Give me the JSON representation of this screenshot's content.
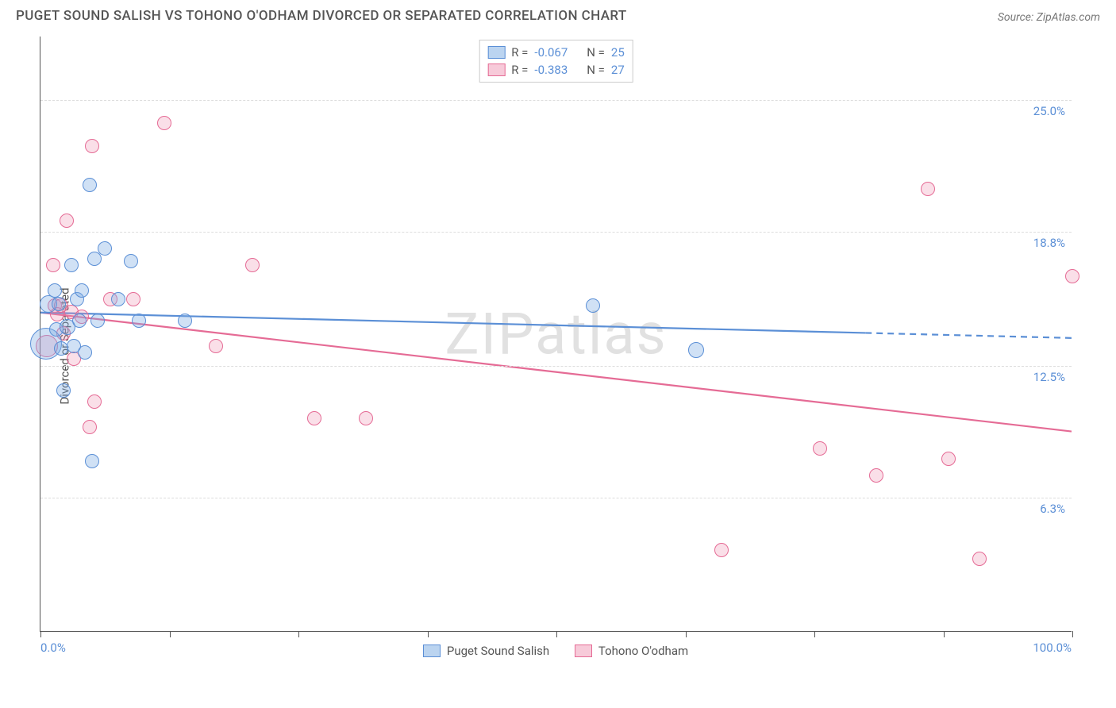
{
  "title": "PUGET SOUND SALISH VS TOHONO O'ODHAM DIVORCED OR SEPARATED CORRELATION CHART",
  "source": "Source: ZipAtlas.com",
  "ylabel": "Divorced or Separated",
  "watermark": "ZIPatlas",
  "chart": {
    "type": "scatter",
    "background_color": "#ffffff",
    "grid_color": "#dddddd",
    "axis_color": "#555555",
    "label_color": "#5b8fd6",
    "text_color": "#555555",
    "title_fontsize": 17,
    "label_fontsize": 15,
    "xlim": [
      0,
      100
    ],
    "ylim": [
      0,
      28
    ],
    "y_gridlines": [
      6.3,
      12.5,
      18.8,
      25.0
    ],
    "y_tick_labels": [
      "6.3%",
      "12.5%",
      "18.8%",
      "25.0%"
    ],
    "x_ticks": [
      0,
      12.5,
      25,
      37.5,
      50,
      62.5,
      75,
      87.5,
      100
    ],
    "x_tick_labels": {
      "left": "0.0%",
      "right": "100.0%"
    },
    "marker_base_radius": 9
  },
  "series_a": {
    "name": "Puget Sound Salish",
    "color_fill": "rgba(120,170,225,0.35)",
    "color_stroke": "#5b8fd6",
    "R": "-0.067",
    "N": "25",
    "trend": {
      "y_at_x0": 15.0,
      "y_at_x100": 13.8,
      "solid_until_x": 80
    },
    "points": [
      {
        "x": 0.5,
        "y": 13.5,
        "r": 20
      },
      {
        "x": 0.8,
        "y": 15.4,
        "r": 11
      },
      {
        "x": 1.4,
        "y": 16.0,
        "r": 9
      },
      {
        "x": 1.5,
        "y": 14.2,
        "r": 9
      },
      {
        "x": 1.8,
        "y": 15.4,
        "r": 9
      },
      {
        "x": 2.0,
        "y": 13.3,
        "r": 9
      },
      {
        "x": 2.2,
        "y": 11.3,
        "r": 9
      },
      {
        "x": 2.6,
        "y": 14.3,
        "r": 10
      },
      {
        "x": 3.0,
        "y": 17.2,
        "r": 9
      },
      {
        "x": 3.2,
        "y": 13.4,
        "r": 9
      },
      {
        "x": 3.5,
        "y": 15.6,
        "r": 9
      },
      {
        "x": 3.8,
        "y": 14.6,
        "r": 9
      },
      {
        "x": 4.0,
        "y": 16.0,
        "r": 9
      },
      {
        "x": 4.3,
        "y": 13.1,
        "r": 9
      },
      {
        "x": 4.8,
        "y": 21.0,
        "r": 9
      },
      {
        "x": 5.0,
        "y": 8.0,
        "r": 9
      },
      {
        "x": 5.2,
        "y": 17.5,
        "r": 9
      },
      {
        "x": 5.5,
        "y": 14.6,
        "r": 9
      },
      {
        "x": 6.2,
        "y": 18.0,
        "r": 9
      },
      {
        "x": 7.5,
        "y": 15.6,
        "r": 9
      },
      {
        "x": 8.8,
        "y": 17.4,
        "r": 9
      },
      {
        "x": 9.5,
        "y": 14.6,
        "r": 9
      },
      {
        "x": 14.0,
        "y": 14.6,
        "r": 9
      },
      {
        "x": 53.5,
        "y": 15.3,
        "r": 9
      },
      {
        "x": 63.5,
        "y": 13.2,
        "r": 10
      }
    ]
  },
  "series_b": {
    "name": "Tohono O'odham",
    "color_fill": "rgba(240,150,180,0.30)",
    "color_stroke": "#e56b95",
    "R": "-0.383",
    "N": "27",
    "trend": {
      "y_at_x0": 15.0,
      "y_at_x100": 9.4,
      "solid_until_x": 100
    },
    "points": [
      {
        "x": 0.6,
        "y": 13.4,
        "r": 14
      },
      {
        "x": 1.2,
        "y": 17.2,
        "r": 9
      },
      {
        "x": 1.4,
        "y": 15.3,
        "r": 9
      },
      {
        "x": 1.6,
        "y": 14.9,
        "r": 9
      },
      {
        "x": 2.0,
        "y": 15.3,
        "r": 9
      },
      {
        "x": 2.2,
        "y": 14.0,
        "r": 9
      },
      {
        "x": 2.5,
        "y": 19.3,
        "r": 9
      },
      {
        "x": 3.0,
        "y": 15.0,
        "r": 9
      },
      {
        "x": 3.2,
        "y": 12.8,
        "r": 9
      },
      {
        "x": 4.0,
        "y": 14.8,
        "r": 9
      },
      {
        "x": 4.8,
        "y": 9.6,
        "r": 9
      },
      {
        "x": 5.0,
        "y": 22.8,
        "r": 9
      },
      {
        "x": 5.2,
        "y": 10.8,
        "r": 9
      },
      {
        "x": 6.8,
        "y": 15.6,
        "r": 9
      },
      {
        "x": 9.0,
        "y": 15.6,
        "r": 9
      },
      {
        "x": 12.0,
        "y": 23.9,
        "r": 9
      },
      {
        "x": 17.0,
        "y": 13.4,
        "r": 9
      },
      {
        "x": 20.5,
        "y": 17.2,
        "r": 9
      },
      {
        "x": 26.5,
        "y": 10.0,
        "r": 9
      },
      {
        "x": 31.5,
        "y": 10.0,
        "r": 9
      },
      {
        "x": 66.0,
        "y": 3.8,
        "r": 9
      },
      {
        "x": 75.5,
        "y": 8.6,
        "r": 9
      },
      {
        "x": 81.0,
        "y": 7.3,
        "r": 9
      },
      {
        "x": 86.0,
        "y": 20.8,
        "r": 9
      },
      {
        "x": 88.0,
        "y": 8.1,
        "r": 9
      },
      {
        "x": 91.0,
        "y": 3.4,
        "r": 9
      },
      {
        "x": 100.0,
        "y": 16.7,
        "r": 9
      }
    ]
  },
  "legend_bottom": {
    "a": "Puget Sound Salish",
    "b": "Tohono O'odham"
  },
  "legend_top_labels": {
    "R": "R =",
    "N": "N ="
  }
}
